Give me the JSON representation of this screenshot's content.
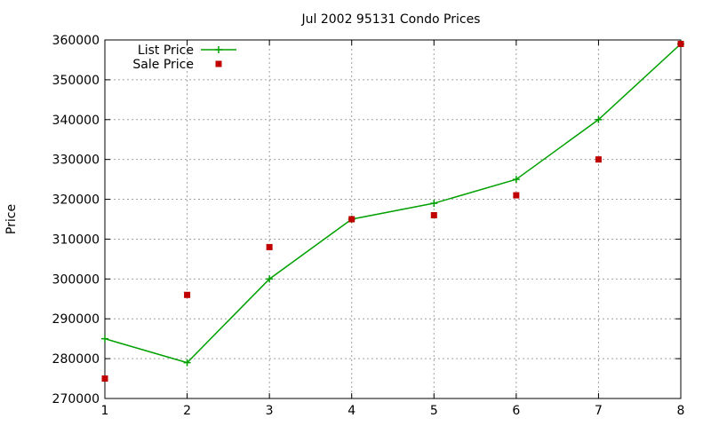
{
  "chart_data": {
    "type": "line",
    "title": "Jul 2002 95131 Condo Prices",
    "xlabel": "",
    "ylabel": "Price",
    "xlim": [
      1,
      8
    ],
    "ylim": [
      270000,
      360000
    ],
    "x_ticks": [
      "1",
      "2",
      "3",
      "4",
      "5",
      "6",
      "7",
      "8"
    ],
    "y_ticks": [
      "270000",
      "280000",
      "290000",
      "300000",
      "310000",
      "320000",
      "330000",
      "340000",
      "350000",
      "360000"
    ],
    "grid": true,
    "legend_position": "top-left",
    "series": [
      {
        "name": "List Price",
        "style": "linespoints",
        "marker": "plus",
        "color": "#00a000",
        "x": [
          1,
          2,
          3,
          4,
          5,
          6,
          7,
          8
        ],
        "y": [
          285000,
          279000,
          300000,
          315000,
          319000,
          325000,
          340000,
          359000
        ]
      },
      {
        "name": "Sale Price",
        "style": "points",
        "marker": "square",
        "color": "#c00000",
        "x": [
          1,
          2,
          3,
          4,
          5,
          6,
          7,
          8
        ],
        "y": [
          275000,
          296000,
          308000,
          315000,
          316000,
          321000,
          330000,
          359000
        ]
      }
    ]
  }
}
